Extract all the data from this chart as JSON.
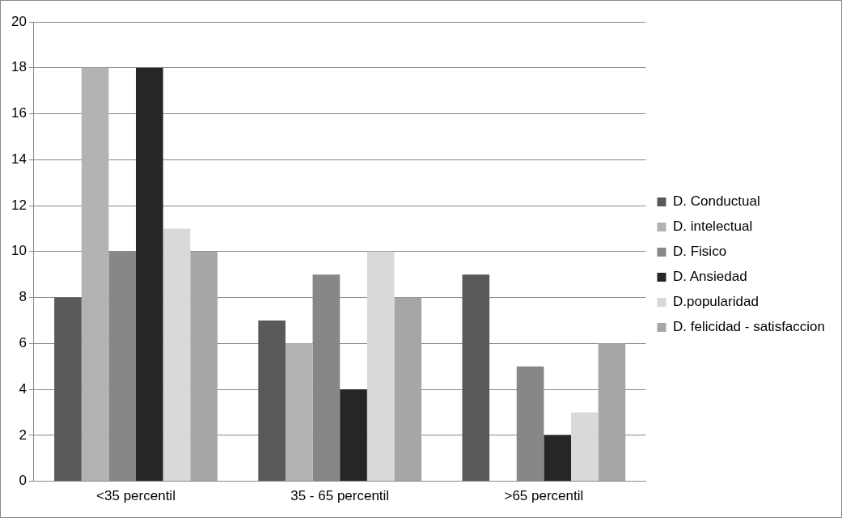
{
  "chart_data": {
    "type": "bar",
    "categories": [
      "<35 percentil",
      "35 - 65 percentil",
      ">65 percentil"
    ],
    "series": [
      {
        "name": "D. Conductual",
        "color": "#595959",
        "values": [
          8,
          7,
          9
        ]
      },
      {
        "name": "D. intelectual",
        "color": "#b3b3b3",
        "values": [
          18,
          6,
          0
        ]
      },
      {
        "name": "D. Fisico",
        "color": "#878787",
        "values": [
          10,
          9,
          5
        ]
      },
      {
        "name": "D. Ansiedad",
        "color": "#262626",
        "values": [
          18,
          4,
          2
        ]
      },
      {
        "name": "D.popularidad",
        "color": "#d9d9d9",
        "values": [
          11,
          10,
          3
        ]
      },
      {
        "name": "D. felicidad - satisfaccion",
        "color": "#a6a6a6",
        "values": [
          10,
          8,
          6
        ]
      }
    ],
    "ylim": [
      0,
      20
    ],
    "yticks": [
      0,
      2,
      4,
      6,
      8,
      10,
      12,
      14,
      16,
      18,
      20
    ],
    "grid": "y",
    "legend": "right"
  }
}
